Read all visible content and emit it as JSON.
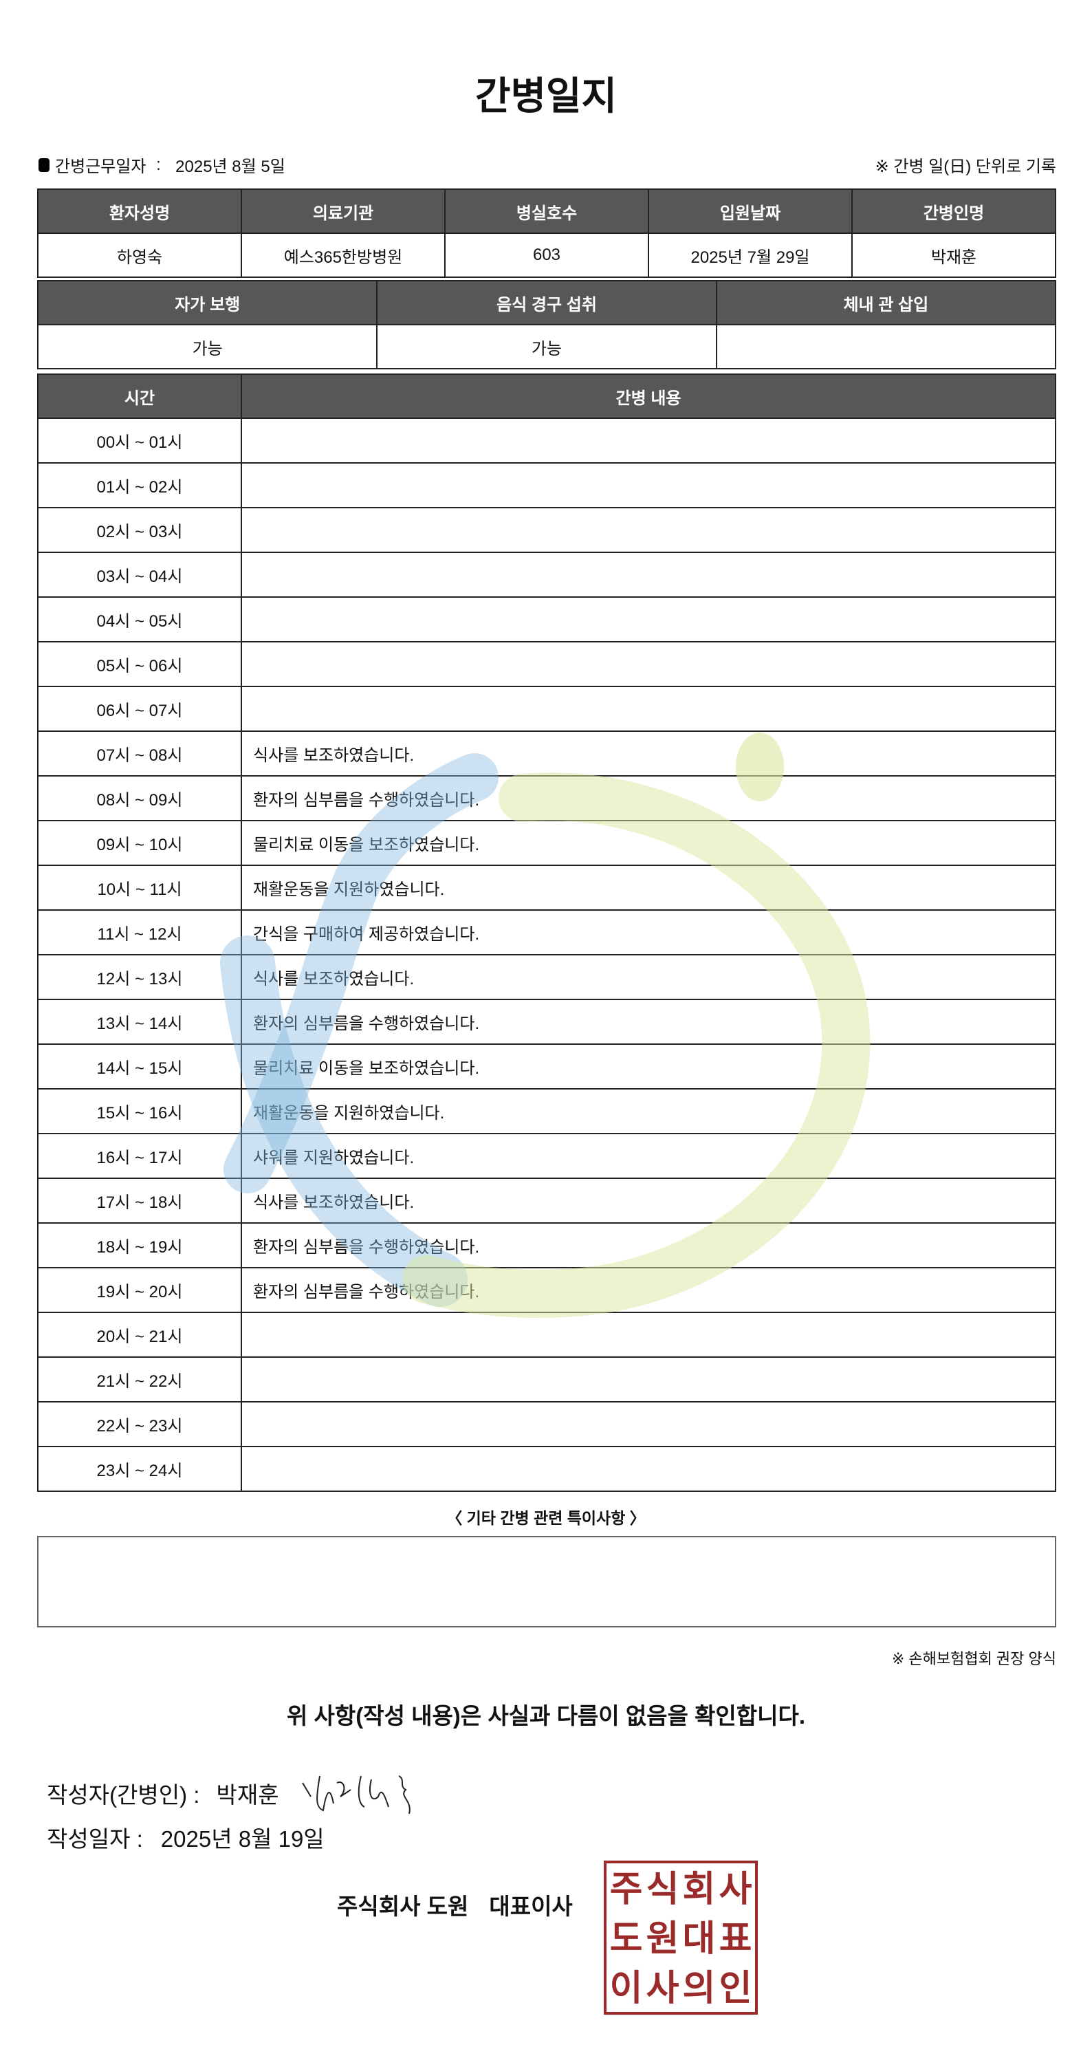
{
  "title": "간병일지",
  "work_date_label": "간병근무일자",
  "work_date": "2025년 8월 5일",
  "unit_note": "※ 간병 일(日) 단위로 기록",
  "patient_table": {
    "headers": [
      "환자성명",
      "의료기관",
      "병실호수",
      "입원날짜",
      "간병인명"
    ],
    "values": [
      "하영숙",
      "예스365한방병원",
      "603",
      "2025년 7월 29일",
      "박재훈"
    ]
  },
  "status_table": {
    "headers": [
      "자가 보행",
      "음식 경구 섭취",
      "체내 관 삽입"
    ],
    "values": [
      "가능",
      "가능",
      ""
    ]
  },
  "log_table": {
    "headers": [
      "시간",
      "간병 내용"
    ],
    "rows": [
      [
        "00시 ~ 01시",
        ""
      ],
      [
        "01시 ~ 02시",
        ""
      ],
      [
        "02시 ~ 03시",
        ""
      ],
      [
        "03시 ~ 04시",
        ""
      ],
      [
        "04시 ~ 05시",
        ""
      ],
      [
        "05시 ~ 06시",
        ""
      ],
      [
        "06시 ~ 07시",
        ""
      ],
      [
        "07시 ~ 08시",
        "식사를 보조하였습니다."
      ],
      [
        "08시 ~ 09시",
        "환자의 심부름을 수행하였습니다."
      ],
      [
        "09시 ~ 10시",
        "물리치료 이동을 보조하였습니다."
      ],
      [
        "10시 ~ 11시",
        "재활운동을 지원하였습니다."
      ],
      [
        "11시 ~ 12시",
        "간식을 구매하여 제공하였습니다."
      ],
      [
        "12시 ~ 13시",
        "식사를 보조하였습니다."
      ],
      [
        "13시 ~ 14시",
        "환자의 심부름을 수행하였습니다."
      ],
      [
        "14시 ~ 15시",
        "물리치료 이동을 보조하였습니다."
      ],
      [
        "15시 ~ 16시",
        "재활운동을 지원하였습니다."
      ],
      [
        "16시 ~ 17시",
        "샤워를 지원하였습니다."
      ],
      [
        "17시 ~ 18시",
        "식사를 보조하였습니다."
      ],
      [
        "18시 ~ 19시",
        "환자의 심부름을 수행하였습니다."
      ],
      [
        "19시 ~ 20시",
        "환자의 심부름을 수행하였습니다."
      ],
      [
        "20시 ~ 21시",
        ""
      ],
      [
        "21시 ~ 22시",
        ""
      ],
      [
        "22시 ~ 23시",
        ""
      ],
      [
        "23시 ~ 24시",
        ""
      ]
    ]
  },
  "notes_label": "〈 기타 간병 관련 특이사항 〉",
  "notes": "",
  "footnote": "※ 손해보험협회 권장 양식",
  "confirm": "위 사항(작성 내용)은 사실과 다름이 없음을 확인합니다.",
  "writer_label": "작성자(간병인) :",
  "writer_name": "박재훈",
  "write_date_label": "작성일자 :",
  "write_date": "2025년 8월 19일",
  "company": "주식회사 도원",
  "ceo": "대표이사",
  "stamp_text": "주식회사도원대표이사의인",
  "colors": {
    "header_bg": "#575757",
    "stamp": "#9b2a2a",
    "watermark_blue": "#7fb6de",
    "watermark_green": "#dbe6a0"
  }
}
